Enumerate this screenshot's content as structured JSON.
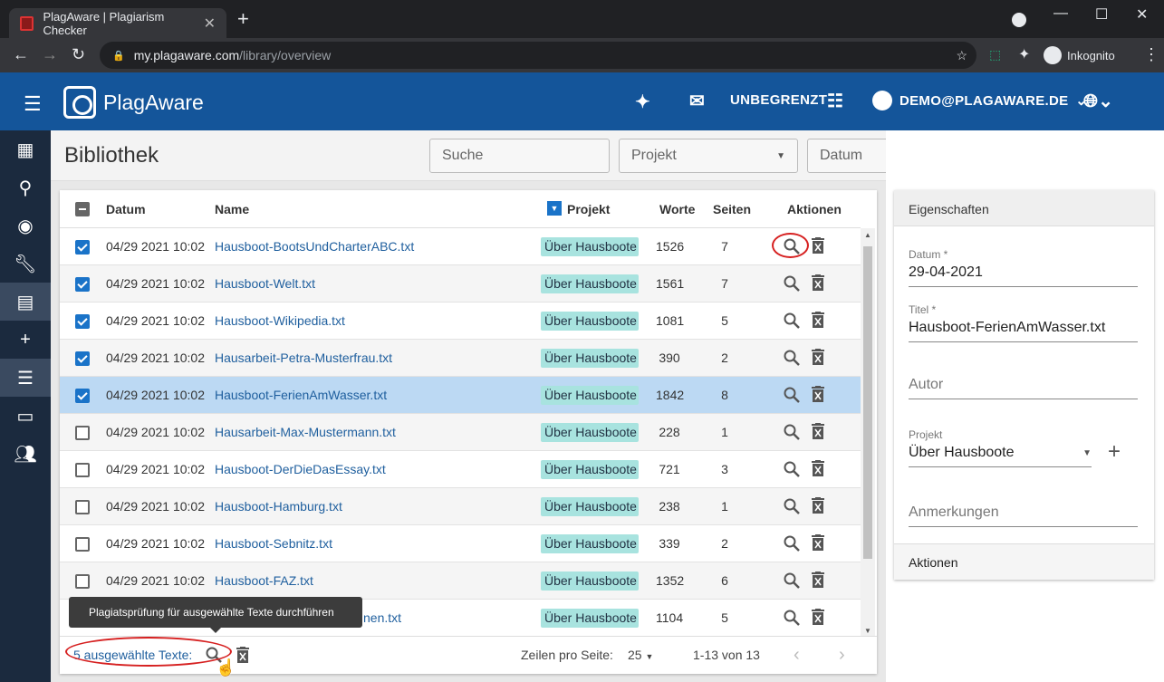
{
  "browser": {
    "tab_title": "PlagAware | Plagiarism Checker",
    "url_host": "my.plagaware.com",
    "url_path": "/library/overview",
    "profile_label": "Inkognito"
  },
  "appbar": {
    "brand": "PlagAware",
    "quota": "UNBEGRENZT",
    "user": "DEMO@PLAGAWARE.DE"
  },
  "sidebar": {
    "items": [
      "dashboard-icon",
      "search-icon",
      "eye-icon",
      "wrench-icon",
      "library-icon",
      "add-icon",
      "list-icon",
      "folder-icon",
      "people-icon"
    ],
    "active_index": 6
  },
  "toolbar": {
    "title": "Bibliothek",
    "search_placeholder": "Suche",
    "project_placeholder": "Projekt",
    "date_placeholder": "Datum"
  },
  "table": {
    "headers": {
      "date": "Datum",
      "name": "Name",
      "project": "Projekt",
      "words": "Worte",
      "pages": "Seiten",
      "actions": "Aktionen"
    },
    "rows": [
      {
        "checked": true,
        "date": "04/29 2021 10:02",
        "name": "Hausboot-BootsUndCharterABC.txt",
        "project": "Über Hausboote",
        "words": "1526",
        "pages": "7"
      },
      {
        "checked": true,
        "date": "04/29 2021 10:02",
        "name": "Hausboot-Welt.txt",
        "project": "Über Hausboote",
        "words": "1561",
        "pages": "7"
      },
      {
        "checked": true,
        "date": "04/29 2021 10:02",
        "name": "Hausboot-Wikipedia.txt",
        "project": "Über Hausboote",
        "words": "1081",
        "pages": "5"
      },
      {
        "checked": true,
        "date": "04/29 2021 10:02",
        "name": "Hausarbeit-Petra-Musterfrau.txt",
        "project": "Über Hausboote",
        "words": "390",
        "pages": "2"
      },
      {
        "checked": true,
        "date": "04/29 2021 10:02",
        "name": "Hausboot-FerienAmWasser.txt",
        "project": "Über Hausboote",
        "words": "1842",
        "pages": "8",
        "selected": true
      },
      {
        "checked": false,
        "date": "04/29 2021 10:02",
        "name": "Hausarbeit-Max-Mustermann.txt",
        "project": "Über Hausboote",
        "words": "228",
        "pages": "1"
      },
      {
        "checked": false,
        "date": "04/29 2021 10:02",
        "name": "Hausboot-DerDieDasEssay.txt",
        "project": "Über Hausboote",
        "words": "721",
        "pages": "3"
      },
      {
        "checked": false,
        "date": "04/29 2021 10:02",
        "name": "Hausboot-Hamburg.txt",
        "project": "Über Hausboote",
        "words": "238",
        "pages": "1"
      },
      {
        "checked": false,
        "date": "04/29 2021 10:02",
        "name": "Hausboot-Sebnitz.txt",
        "project": "Über Hausboote",
        "words": "339",
        "pages": "2"
      },
      {
        "checked": false,
        "date": "04/29 2021 10:02",
        "name": "Hausboot-FAZ.txt",
        "project": "Über Hausboote",
        "words": "1352",
        "pages": "6"
      },
      {
        "checked": false,
        "date": "",
        "name": "nen.txt",
        "project": "Über Hausboote",
        "words": "1104",
        "pages": "5"
      }
    ]
  },
  "footer": {
    "selected_text": "5 ausgewählte Texte:",
    "rows_per_page_label": "Zeilen pro Seite:",
    "rows_per_page_value": "25",
    "range": "1-13 von 13"
  },
  "tooltip": "Plagiatsprüfung für ausgewählte Texte durchführen",
  "properties": {
    "header": "Eigenschaften",
    "date_label": "Datum *",
    "date_value": "29-04-2021",
    "title_label": "Titel *",
    "title_value": "Hausboot-FerienAmWasser.txt",
    "author_placeholder": "Autor",
    "project_label": "Projekt",
    "project_value": "Über Hausboote",
    "notes_placeholder": "Anmerkungen",
    "actions_label": "Aktionen"
  },
  "colors": {
    "appbar": "#14559a",
    "sidebar": "#1b2a3e",
    "chip": "#a8e3df",
    "selected_row": "#bcd9f3",
    "highlight_ring": "#d62020"
  }
}
